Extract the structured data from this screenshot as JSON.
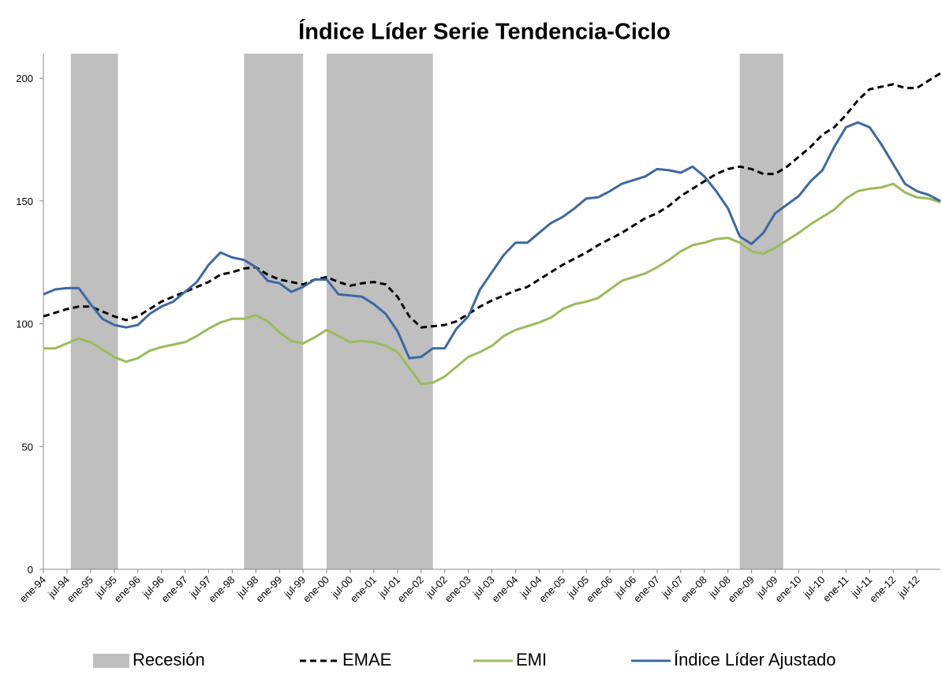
{
  "chart_data": {
    "type": "line",
    "title": "Índice Líder Serie Tendencia-Ciclo",
    "xlim": [
      1994,
      2013
    ],
    "ylim": [
      0,
      210
    ],
    "yticks": [
      0,
      50,
      100,
      150,
      200
    ],
    "xticks": [
      {
        "value": 1994,
        "label": "ene-94"
      },
      {
        "value": 1994.5,
        "label": "jul-94"
      },
      {
        "value": 1995,
        "label": "ene-95"
      },
      {
        "value": 1995.5,
        "label": "jul-95"
      },
      {
        "value": 1996,
        "label": "ene-96"
      },
      {
        "value": 1996.5,
        "label": "jul-96"
      },
      {
        "value": 1997,
        "label": "ene-97"
      },
      {
        "value": 1997.5,
        "label": "jul-97"
      },
      {
        "value": 1998,
        "label": "ene-98"
      },
      {
        "value": 1998.5,
        "label": "jul-98"
      },
      {
        "value": 1999,
        "label": "ene-99"
      },
      {
        "value": 1999.5,
        "label": "jul-99"
      },
      {
        "value": 2000,
        "label": "ene-00"
      },
      {
        "value": 2000.5,
        "label": "jul-00"
      },
      {
        "value": 2001,
        "label": "ene-01"
      },
      {
        "value": 2001.5,
        "label": "jul-01"
      },
      {
        "value": 2002,
        "label": "ene-02"
      },
      {
        "value": 2002.5,
        "label": "jul-02"
      },
      {
        "value": 2003,
        "label": "ene-03"
      },
      {
        "value": 2003.5,
        "label": "jul-03"
      },
      {
        "value": 2004,
        "label": "ene-04"
      },
      {
        "value": 2004.5,
        "label": "jul-04"
      },
      {
        "value": 2005,
        "label": "ene-05"
      },
      {
        "value": 2005.5,
        "label": "jul-05"
      },
      {
        "value": 2006,
        "label": "ene-06"
      },
      {
        "value": 2006.5,
        "label": "jul-06"
      },
      {
        "value": 2007,
        "label": "ene-07"
      },
      {
        "value": 2007.5,
        "label": "jul-07"
      },
      {
        "value": 2008,
        "label": "ene-08"
      },
      {
        "value": 2008.5,
        "label": "jul-08"
      },
      {
        "value": 2009,
        "label": "ene-09"
      },
      {
        "value": 2009.5,
        "label": "jul-09"
      },
      {
        "value": 2010,
        "label": "ene-10"
      },
      {
        "value": 2010.5,
        "label": "jul-10"
      },
      {
        "value": 2011,
        "label": "ene-11"
      },
      {
        "value": 2011.5,
        "label": "jul-11"
      },
      {
        "value": 2012,
        "label": "ene-12"
      },
      {
        "value": 2012.5,
        "label": "jul-12"
      }
    ],
    "recessions": {
      "name": "Recesión",
      "color": "#bfbfbf",
      "bands": [
        [
          1994.58,
          1995.58
        ],
        [
          1998.25,
          1999.5
        ],
        [
          2000,
          2002.25
        ],
        [
          2008.75,
          2009.67
        ]
      ]
    },
    "x": [
      1994,
      1994.25,
      1994.5,
      1994.75,
      1995,
      1995.25,
      1995.5,
      1995.75,
      1996,
      1996.25,
      1996.5,
      1996.75,
      1997,
      1997.25,
      1997.5,
      1997.75,
      1998,
      1998.25,
      1998.5,
      1998.75,
      1999,
      1999.25,
      1999.5,
      1999.75,
      2000,
      2000.25,
      2000.5,
      2000.75,
      2001,
      2001.25,
      2001.5,
      2001.75,
      2002,
      2002.25,
      2002.5,
      2002.75,
      2003,
      2003.25,
      2003.5,
      2003.75,
      2004,
      2004.25,
      2004.5,
      2004.75,
      2005,
      2005.25,
      2005.5,
      2005.75,
      2006,
      2006.25,
      2006.5,
      2006.75,
      2007,
      2007.25,
      2007.5,
      2007.75,
      2008,
      2008.25,
      2008.5,
      2008.75,
      2009,
      2009.25,
      2009.5,
      2009.75,
      2010,
      2010.25,
      2010.5,
      2010.75,
      2011,
      2011.25,
      2011.5,
      2011.75,
      2012,
      2012.25,
      2012.5,
      2012.75,
      2013
    ],
    "series": [
      {
        "name": "EMAE",
        "color": "#000000",
        "dashed": true,
        "values": [
          103,
          104.5,
          106,
          107,
          107,
          105,
          103,
          101.5,
          103,
          106,
          109,
          111,
          113,
          115,
          117,
          120,
          121,
          122.5,
          123,
          120,
          118,
          117,
          116,
          118,
          119,
          117,
          115.5,
          116.5,
          117,
          116,
          111,
          103,
          98.5,
          99,
          99.5,
          101,
          104,
          107,
          109.5,
          111.5,
          113.5,
          115,
          118,
          121,
          124,
          126.5,
          129,
          132,
          134.5,
          137,
          140,
          143,
          145,
          148,
          152,
          155,
          158,
          161,
          163,
          164,
          163,
          161,
          161,
          164,
          168,
          172,
          177,
          180,
          185,
          191,
          195.5,
          196.5,
          197.5,
          196,
          196,
          199,
          202
        ]
      },
      {
        "name": "EMI",
        "color": "#9bbb59",
        "dashed": false,
        "values": [
          90,
          90,
          92,
          94,
          92.5,
          89.5,
          86.5,
          84.5,
          86,
          89,
          90.5,
          91.5,
          92.5,
          95,
          98,
          100.5,
          102,
          102,
          103.5,
          101,
          96.5,
          93,
          92,
          94.5,
          97.5,
          95,
          92.5,
          93,
          92.5,
          91,
          88.5,
          82,
          75.5,
          76,
          78.5,
          82.5,
          86.5,
          88.5,
          91,
          95,
          97.5,
          99,
          100.5,
          102.5,
          106,
          108,
          109,
          110.5,
          114,
          117.5,
          119,
          120.5,
          123,
          126,
          129.5,
          132,
          133,
          134.5,
          135,
          133,
          129.5,
          128.5,
          131,
          134,
          137,
          140.5,
          143.5,
          146.5,
          151,
          154,
          155,
          155.5,
          157,
          153.5,
          151.5,
          151,
          149.5
        ]
      },
      {
        "name": "Índice Líder Ajustado",
        "color": "#3c68a3",
        "dashed": false,
        "values": [
          112,
          114,
          114.5,
          114.5,
          108,
          102,
          99.5,
          98.5,
          99.5,
          104,
          107,
          109,
          113,
          117,
          124,
          129,
          127,
          126,
          123,
          117.5,
          116.5,
          113,
          115,
          118,
          118,
          112,
          111.5,
          111,
          108,
          104,
          97,
          86,
          86.5,
          90,
          90,
          98,
          103,
          114,
          121,
          128,
          133,
          133,
          137,
          141,
          143.5,
          147,
          151,
          151.5,
          154,
          157,
          158.5,
          160,
          163,
          162.5,
          161.5,
          164,
          160,
          154,
          147,
          135.5,
          132.5,
          137,
          145,
          148.5,
          152,
          158,
          162.5,
          172,
          180,
          182,
          180,
          173,
          165,
          157,
          154,
          152.5,
          150
        ]
      }
    ]
  }
}
